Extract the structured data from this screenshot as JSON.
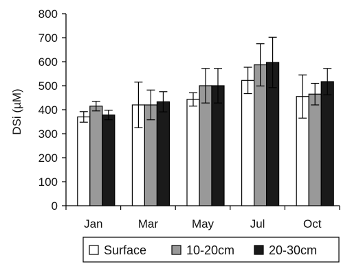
{
  "chart_data": {
    "type": "bar",
    "ylabel": "DSi (µM)",
    "ylim": [
      0,
      800
    ],
    "yticks": [
      0,
      100,
      200,
      300,
      400,
      500,
      600,
      700,
      800
    ],
    "categories": [
      "Jan",
      "Mar",
      "May",
      "Jul",
      "Oct"
    ],
    "grid": false,
    "legend_position": "bottom",
    "series": [
      {
        "name": "Surface",
        "color": "#ffffff",
        "values": [
          370,
          420,
          443,
          522,
          455
        ],
        "errors": [
          22,
          95,
          28,
          55,
          90
        ]
      },
      {
        "name": "10-20cm",
        "color": "#999999",
        "values": [
          415,
          420,
          500,
          587,
          465
        ],
        "errors": [
          20,
          62,
          72,
          88,
          45
        ]
      },
      {
        "name": "20-30cm",
        "color": "#1a1a1a",
        "values": [
          378,
          433,
          500,
          597,
          517
        ],
        "errors": [
          20,
          42,
          72,
          105,
          55
        ]
      }
    ]
  }
}
